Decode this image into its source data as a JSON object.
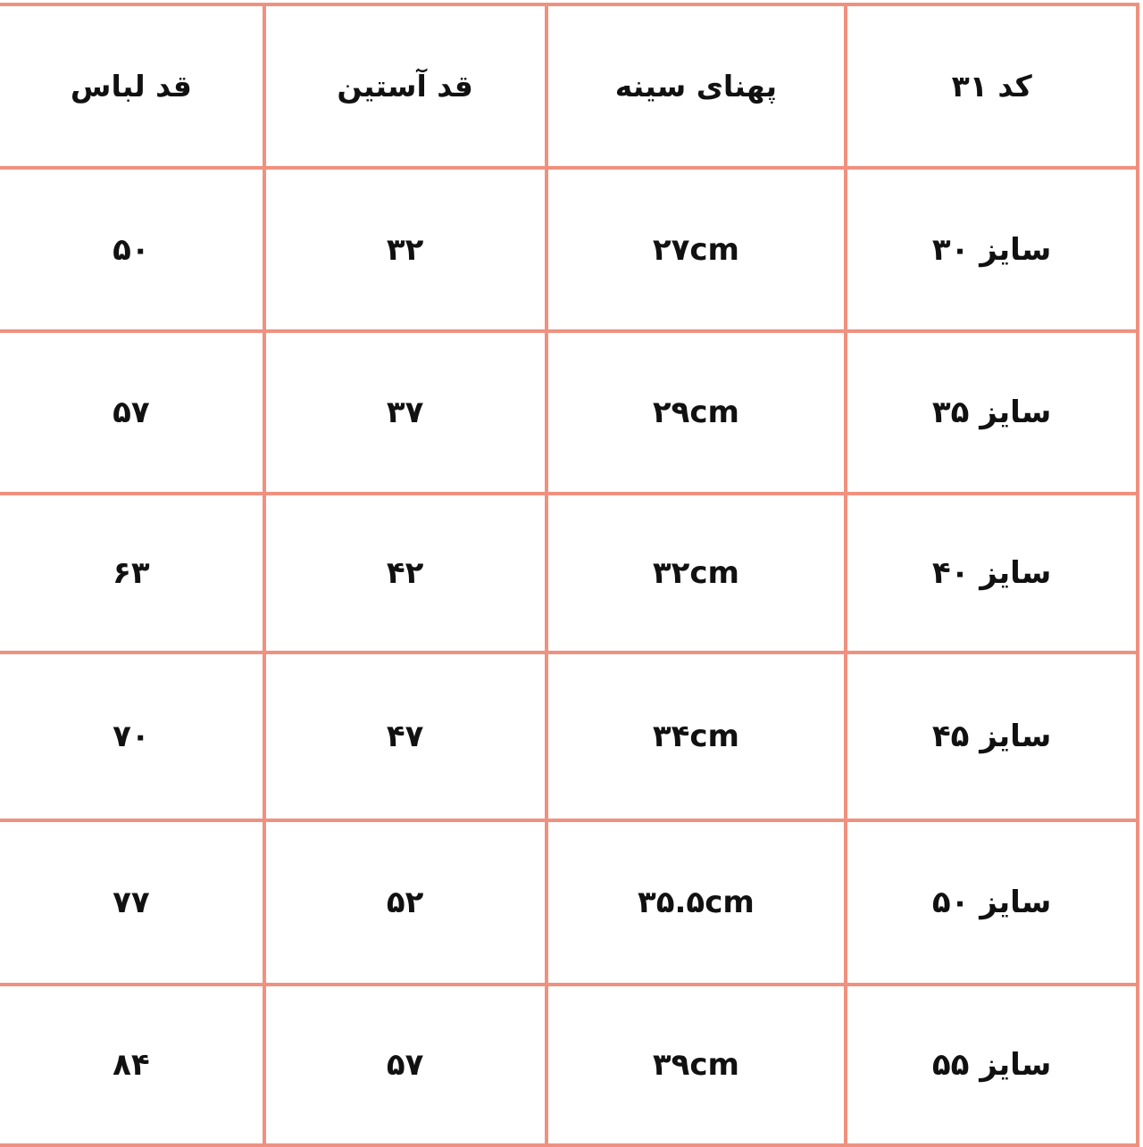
{
  "table": {
    "border_color": "#f0917f",
    "headers": [
      "کد ۳۱",
      "پهنای سینه",
      "قد آستین",
      "قد لباس"
    ],
    "rows": [
      [
        "سایز ۳۰",
        "۲۷cm",
        "۳۲",
        "۵۰"
      ],
      [
        "سایز ۳۵",
        "۲۹cm",
        "۳۷",
        "۵۷"
      ],
      [
        "سایز ۴۰",
        "۳۲cm",
        "۴۲",
        "۶۳"
      ],
      [
        "سایز ۴۵",
        "۳۴cm",
        "۴۷",
        "۷۰"
      ],
      [
        "سایز ۵۰",
        "۳۵.۵cm",
        "۵۲",
        "۷۷"
      ],
      [
        "سایز ۵۵",
        "۳۹cm",
        "۵۷",
        "۸۴"
      ]
    ]
  }
}
